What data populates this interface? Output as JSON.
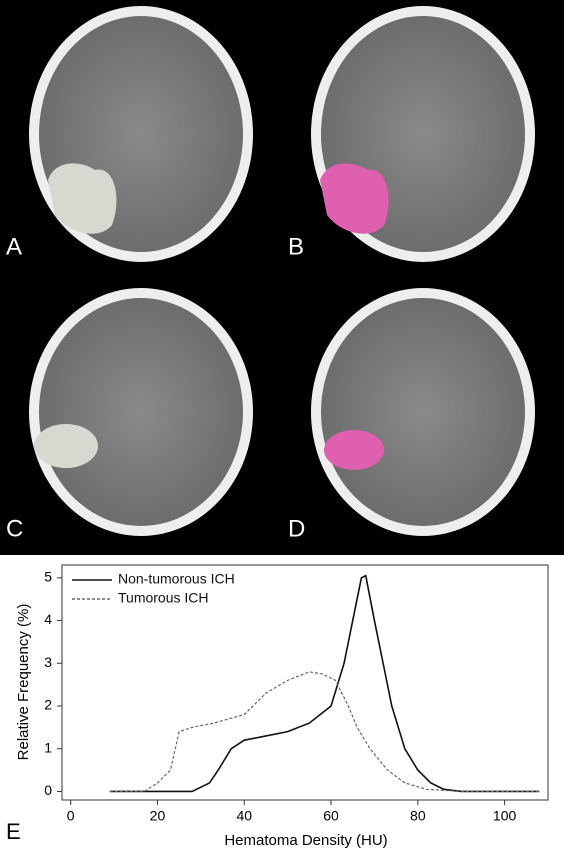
{
  "panels": [
    "A",
    "B",
    "C",
    "D",
    "E"
  ],
  "chart_data": {
    "type": "line",
    "xlabel": "Hematoma Density (HU)",
    "ylabel": "Relative Frequency (%)",
    "xlim": [
      -2,
      110
    ],
    "ylim": [
      -0.2,
      5.3
    ],
    "xticks": [
      0,
      20,
      40,
      60,
      80,
      100
    ],
    "yticks": [
      0,
      1,
      2,
      3,
      4,
      5
    ],
    "legend": "upper left",
    "series": [
      {
        "name": "Non-tumorous ICH",
        "color": "#111111",
        "linestyle": "solid",
        "x": [
          9,
          28,
          30,
          32,
          34,
          37,
          40,
          45,
          50,
          55,
          60,
          63,
          65,
          67,
          68,
          70,
          72,
          74,
          77,
          80,
          83,
          86,
          90,
          108
        ],
        "values": [
          0,
          0,
          0.1,
          0.2,
          0.5,
          1,
          1.2,
          1.3,
          1.4,
          1.6,
          2,
          3,
          4,
          5,
          5.05,
          4,
          3,
          2,
          1,
          0.5,
          0.2,
          0.05,
          0,
          0
        ]
      },
      {
        "name": "Tumorous ICH",
        "color": "#666666",
        "linestyle": "dashed",
        "x": [
          9,
          17,
          20,
          23,
          25,
          28,
          33,
          40,
          45,
          50,
          55,
          58,
          61,
          64,
          66,
          69,
          73,
          77,
          82,
          90,
          108
        ],
        "values": [
          0,
          0,
          0.2,
          0.5,
          1.4,
          1.5,
          1.6,
          1.8,
          2.3,
          2.6,
          2.8,
          2.75,
          2.6,
          2,
          1.5,
          1,
          0.5,
          0.2,
          0.05,
          0,
          0
        ]
      }
    ]
  }
}
